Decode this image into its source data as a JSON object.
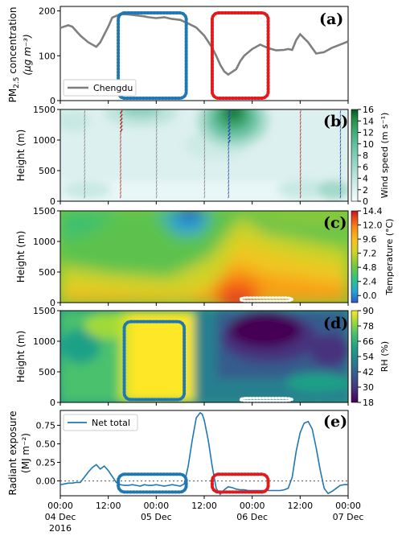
{
  "x_axis": {
    "ticks": [
      {
        "time": "00:00",
        "date": "04 Dec",
        "year": "2016",
        "hour": 0
      },
      {
        "time": "12:00",
        "date": "",
        "year": "",
        "hour": 12
      },
      {
        "time": "00:00",
        "date": "05 Dec",
        "year": "",
        "hour": 24
      },
      {
        "time": "12:00",
        "date": "",
        "year": "",
        "hour": 36
      },
      {
        "time": "00:00",
        "date": "06 Dec",
        "year": "",
        "hour": 48
      },
      {
        "time": "12:00",
        "date": "",
        "year": "",
        "hour": 60
      },
      {
        "time": "00:00",
        "date": "07 Dec",
        "year": "",
        "hour": 72
      }
    ],
    "range_hours": [
      0,
      72
    ]
  },
  "chart_data": [
    {
      "panel": "(a)",
      "type": "line",
      "ylabel": "PM2.5 concentration (μg m⁻³)",
      "ylabel_main": "PM",
      "ylabel_sub": "2.5",
      "ylabel_rest": " concentration",
      "ylabel_unit": "(μg m⁻³)",
      "ylim": [
        0,
        210
      ],
      "yticks": [
        "0",
        "100",
        "200"
      ],
      "legend": "Chengdu",
      "series": [
        {
          "name": "Chengdu",
          "color": "#7f7f7f",
          "x": [
            0,
            2,
            3,
            5,
            7,
            9,
            10,
            12,
            13,
            15,
            17,
            19,
            21,
            22,
            24,
            26,
            28,
            30,
            32,
            34,
            36,
            38,
            39,
            40,
            41,
            42,
            44,
            45,
            46,
            48,
            50,
            52,
            54,
            56,
            57,
            58,
            59,
            60,
            62,
            64,
            66,
            68,
            70,
            72
          ],
          "y": [
            162,
            168,
            165,
            145,
            130,
            120,
            130,
            165,
            185,
            193,
            192,
            190,
            188,
            186,
            184,
            186,
            182,
            180,
            172,
            163,
            145,
            118,
            100,
            80,
            65,
            58,
            70,
            88,
            100,
            115,
            125,
            117,
            112,
            113,
            115,
            113,
            135,
            148,
            130,
            105,
            108,
            118,
            125,
            132
          ]
        }
      ],
      "boxes": [
        {
          "x0": 14.5,
          "x1": 31.5,
          "color": "#1f77b4"
        },
        {
          "x0": 38,
          "x1": 52,
          "color": "#e31a1c"
        }
      ]
    },
    {
      "panel": "(b)",
      "type": "heatmap",
      "ylabel": "Height (m)",
      "ylim": [
        0,
        1500
      ],
      "yticks": [
        "0",
        "500",
        "1000",
        "1500"
      ],
      "colorbar": {
        "label": "Wind speed (m s⁻¹)",
        "ticks": [
          "0",
          "2",
          "4",
          "6",
          "8",
          "10",
          "12",
          "14",
          "16"
        ],
        "range": [
          0,
          16
        ]
      },
      "wind_profile_times": [
        6,
        15,
        24,
        36,
        42,
        60,
        70
      ],
      "description_cores": [
        {
          "x": 42,
          "h": 1400,
          "v": 16
        },
        {
          "x": 20,
          "h": 1450,
          "v": 8
        },
        {
          "x": 68,
          "h": 300,
          "v": 5
        },
        {
          "x": 3,
          "h": 1300,
          "v": 4
        }
      ]
    },
    {
      "panel": "(c)",
      "type": "heatmap",
      "ylabel": "Height (m)",
      "ylim": [
        0,
        1500
      ],
      "yticks": [
        "0",
        "500",
        "1000",
        "1500"
      ],
      "colorbar": {
        "label": "Temperature (°C)",
        "ticks": [
          "0.0",
          "2.4",
          "4.8",
          "7.2",
          "9.6",
          "12.0",
          "14.4"
        ],
        "range": [
          -1.2,
          14.4
        ]
      },
      "boxes": [
        {
          "x0": 45,
          "x1": 58,
          "h0": 0,
          "h1": 80,
          "color": "#ffffff"
        }
      ]
    },
    {
      "panel": "(d)",
      "type": "heatmap",
      "ylabel": "Height (m)",
      "ylim": [
        0,
        1500
      ],
      "yticks": [
        "0",
        "500",
        "1000",
        "1500"
      ],
      "colorbar": {
        "label": "RH (%)",
        "ticks": [
          "18",
          "30",
          "42",
          "54",
          "66",
          "78",
          "90"
        ],
        "range": [
          18,
          90
        ]
      },
      "boxes": [
        {
          "x0": 16,
          "x1": 31,
          "h0": 20,
          "h1": 1320,
          "color": "#1f77b4"
        },
        {
          "x0": 45,
          "x1": 58,
          "h0": 0,
          "h1": 70,
          "color": "#ffffff"
        }
      ]
    },
    {
      "panel": "(e)",
      "type": "line",
      "ylabel_line1": "Radiant exposure",
      "ylabel_line2": "(MJ m⁻²)",
      "ylim": [
        -0.2,
        0.95
      ],
      "yticks": [
        "0.00",
        "0.25",
        "0.50",
        "0.75"
      ],
      "ytick_values": [
        0,
        0.25,
        0.5,
        0.75
      ],
      "legend": "Net total",
      "series": [
        {
          "name": "Net total",
          "color": "#1f77b4",
          "x": [
            0,
            1,
            2,
            3,
            4,
            5,
            6,
            7,
            8,
            9,
            10,
            11,
            12,
            13,
            14,
            15,
            16,
            17,
            18,
            19,
            20,
            21,
            22,
            23,
            24,
            25,
            26,
            27,
            28,
            29,
            30,
            31,
            32,
            33,
            34,
            35,
            35.5,
            36,
            37,
            38,
            39,
            40,
            41,
            42,
            43,
            44,
            45,
            46,
            47,
            48,
            49,
            50,
            51,
            52,
            53,
            54,
            55,
            56,
            57,
            58,
            59,
            60,
            61,
            62,
            63,
            64,
            65,
            66,
            67,
            68,
            69,
            70,
            71,
            72
          ],
          "y": [
            -0.05,
            -0.04,
            -0.03,
            -0.03,
            -0.02,
            -0.02,
            0.05,
            0.12,
            0.18,
            0.22,
            0.16,
            0.2,
            0.14,
            0.06,
            -0.02,
            -0.05,
            -0.06,
            -0.06,
            -0.05,
            -0.06,
            -0.07,
            -0.05,
            -0.06,
            -0.06,
            -0.05,
            -0.06,
            -0.07,
            -0.06,
            -0.05,
            -0.06,
            -0.07,
            -0.04,
            0.2,
            0.55,
            0.85,
            0.92,
            0.9,
            0.82,
            0.55,
            0.2,
            -0.1,
            -0.18,
            -0.12,
            -0.08,
            -0.09,
            -0.11,
            -0.12,
            -0.12,
            -0.13,
            -0.13,
            -0.13,
            -0.13,
            -0.13,
            -0.13,
            -0.13,
            -0.13,
            -0.13,
            -0.12,
            -0.1,
            0.05,
            0.4,
            0.65,
            0.78,
            0.8,
            0.7,
            0.45,
            0.15,
            -0.1,
            -0.17,
            -0.14,
            -0.1,
            -0.06,
            -0.05,
            -0.05
          ]
        }
      ],
      "boxes": [
        {
          "x0": 14.5,
          "x1": 31.5,
          "y0": -0.15,
          "y1": 0.09,
          "color": "#1f77b4"
        },
        {
          "x0": 38,
          "x1": 52,
          "y0": -0.15,
          "y1": 0.09,
          "color": "#e31a1c"
        }
      ]
    }
  ]
}
